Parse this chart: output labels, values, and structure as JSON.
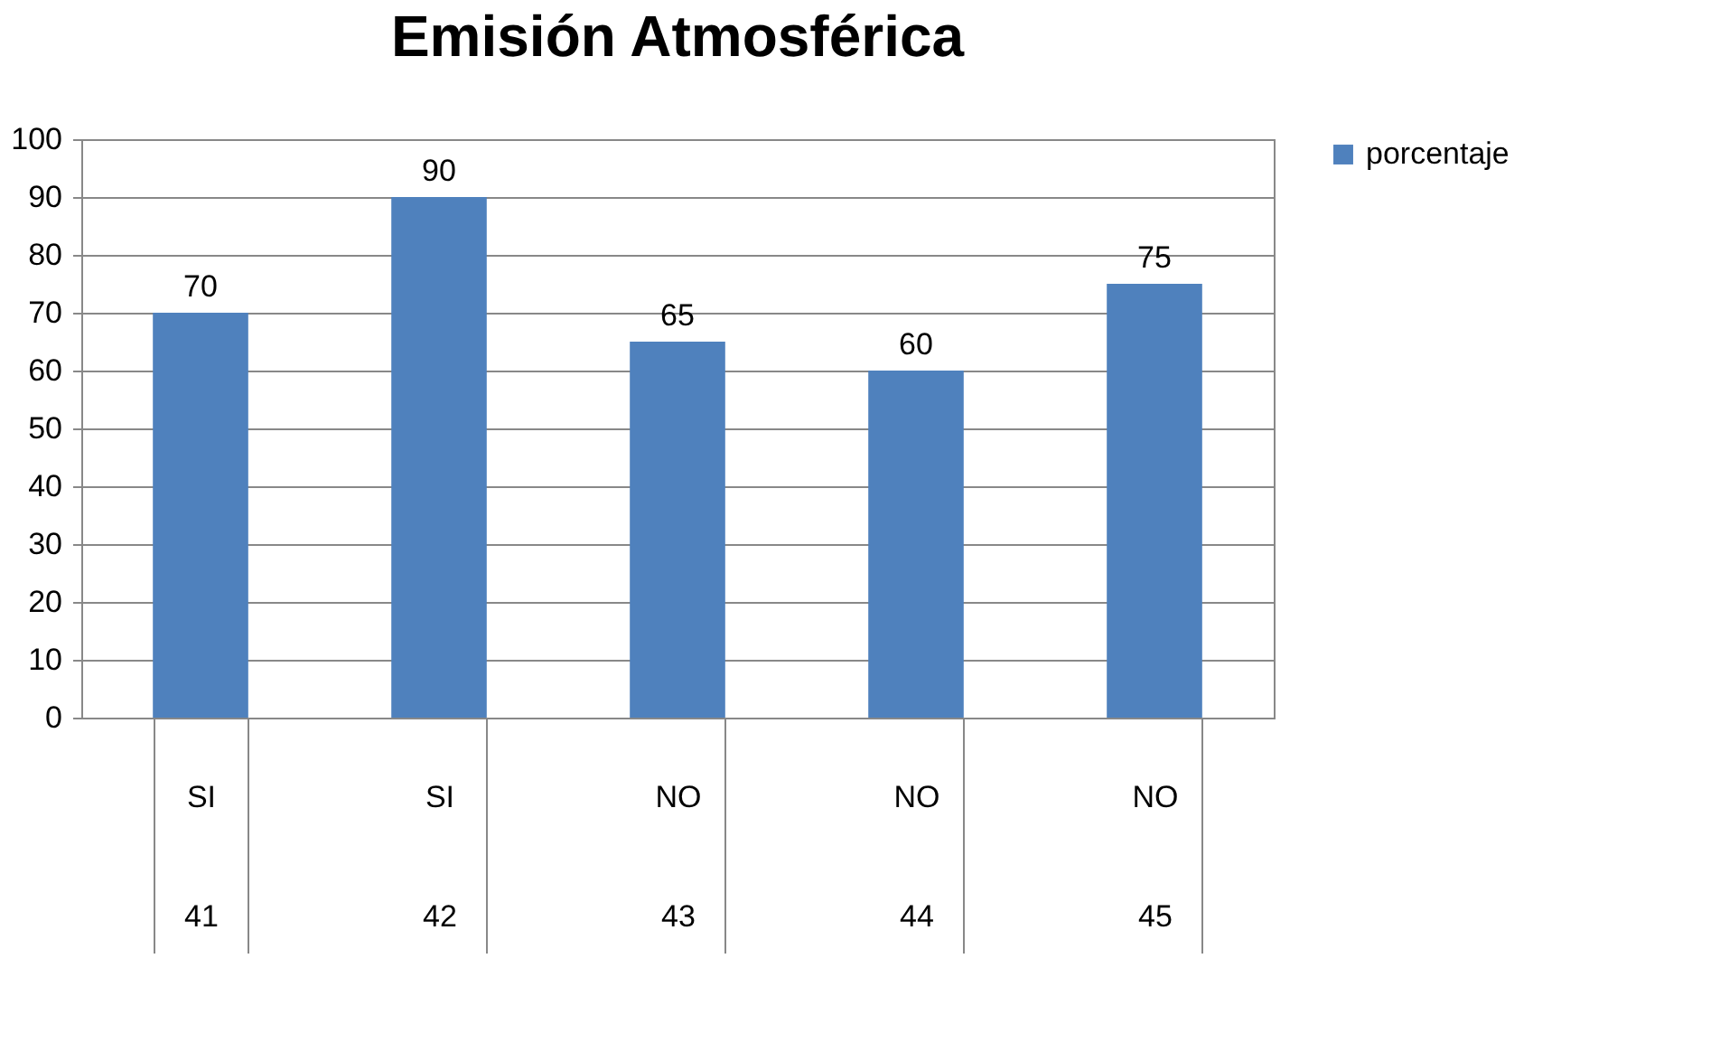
{
  "chart_data": {
    "type": "bar",
    "title": "Emisión Atmosférica",
    "categories": [
      "SI\n41",
      "SI\n42",
      "NO\n43",
      "NO\n44",
      "NO\n45"
    ],
    "series": [
      {
        "name": "porcentaje",
        "color": "#4f81bd",
        "values": [
          70,
          90,
          65,
          60,
          75
        ]
      }
    ],
    "ylim": [
      0,
      100
    ],
    "yticks": [
      0,
      10,
      20,
      30,
      40,
      50,
      60,
      70,
      80,
      90,
      100
    ],
    "grid": "y",
    "legend": "right",
    "data_labels": true
  }
}
